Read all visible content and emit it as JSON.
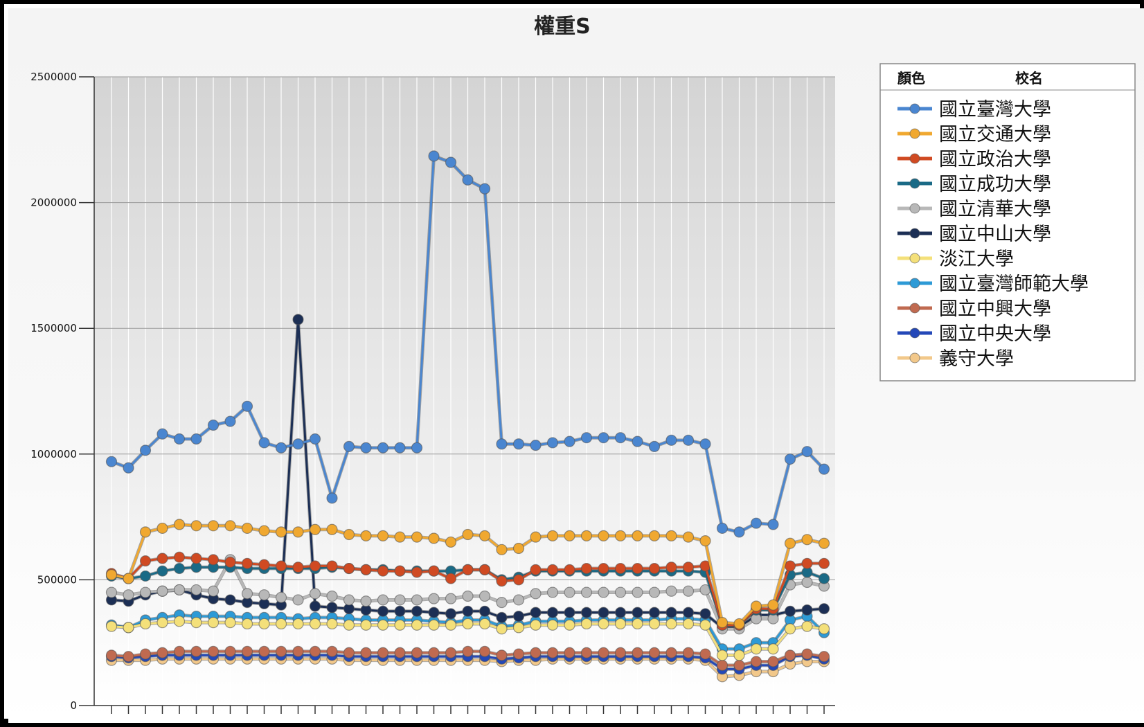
{
  "chart_data": {
    "type": "line",
    "title": "權重S",
    "xlabel": "",
    "ylabel": "",
    "ylim": [
      0,
      2500000
    ],
    "yticks": [
      0,
      500000,
      1000000,
      1500000,
      2000000,
      2500000
    ],
    "ytick_labels": [
      "0",
      "500000",
      "1000000",
      "1500000",
      "2000000",
      "2500000"
    ],
    "grid": true,
    "legend_placement": "top-right",
    "legend_headers": [
      "顏色",
      "校名"
    ],
    "series": [
      {
        "name": "國立臺灣大學",
        "color": "#4a86d0",
        "values": [
          970000,
          945000,
          1015000,
          1080000,
          1060000,
          1060000,
          1115000,
          1130000,
          1190000,
          1045000,
          1025000,
          1040000,
          1060000,
          825000,
          1030000,
          1025000,
          1025000,
          1025000,
          1025000,
          2185000,
          2160000,
          2090000,
          2055000,
          1040000,
          1040000,
          1035000,
          1045000,
          1050000,
          1065000,
          1065000,
          1065000,
          1050000,
          1030000,
          1055000,
          1055000,
          1040000,
          705000,
          690000,
          725000,
          720000,
          980000,
          1010000,
          940000
        ]
      },
      {
        "name": "國立交通大學",
        "color": "#f0a830",
        "values": [
          520000,
          505000,
          690000,
          705000,
          720000,
          715000,
          715000,
          715000,
          705000,
          695000,
          690000,
          690000,
          700000,
          700000,
          680000,
          675000,
          675000,
          670000,
          670000,
          665000,
          650000,
          680000,
          675000,
          620000,
          625000,
          670000,
          675000,
          675000,
          675000,
          675000,
          675000,
          675000,
          675000,
          675000,
          670000,
          655000,
          330000,
          325000,
          395000,
          400000,
          645000,
          660000,
          645000
        ]
      },
      {
        "name": "國立政治大學",
        "color": "#d04a22",
        "values": [
          525000,
          505000,
          575000,
          585000,
          590000,
          585000,
          580000,
          570000,
          565000,
          560000,
          555000,
          550000,
          555000,
          555000,
          545000,
          540000,
          535000,
          535000,
          530000,
          535000,
          505000,
          540000,
          540000,
          495000,
          500000,
          540000,
          540000,
          540000,
          545000,
          545000,
          545000,
          545000,
          545000,
          550000,
          550000,
          555000,
          320000,
          320000,
          385000,
          385000,
          555000,
          565000,
          565000
        ]
      },
      {
        "name": "國立成功大學",
        "color": "#1a6a86",
        "values": [
          515000,
          505000,
          515000,
          535000,
          545000,
          550000,
          550000,
          550000,
          545000,
          545000,
          545000,
          545000,
          545000,
          550000,
          545000,
          540000,
          540000,
          535000,
          535000,
          535000,
          535000,
          540000,
          540000,
          500000,
          510000,
          535000,
          535000,
          535000,
          535000,
          535000,
          535000,
          535000,
          535000,
          535000,
          535000,
          530000,
          320000,
          320000,
          380000,
          380000,
          520000,
          530000,
          505000
        ]
      },
      {
        "name": "國立清華大學",
        "color": "#b8b8b8",
        "values": [
          450000,
          440000,
          450000,
          455000,
          460000,
          460000,
          455000,
          580000,
          445000,
          440000,
          430000,
          420000,
          445000,
          435000,
          420000,
          415000,
          420000,
          420000,
          420000,
          425000,
          425000,
          435000,
          435000,
          410000,
          420000,
          445000,
          450000,
          450000,
          450000,
          450000,
          450000,
          450000,
          450000,
          455000,
          455000,
          460000,
          305000,
          305000,
          345000,
          345000,
          480000,
          490000,
          475000
        ]
      },
      {
        "name": "國立中山大學",
        "color": "#1c2f55",
        "values": [
          420000,
          415000,
          440000,
          455000,
          460000,
          440000,
          425000,
          420000,
          410000,
          405000,
          400000,
          1535000,
          395000,
          390000,
          385000,
          380000,
          375000,
          375000,
          375000,
          370000,
          365000,
          375000,
          375000,
          350000,
          355000,
          370000,
          370000,
          370000,
          370000,
          370000,
          370000,
          370000,
          370000,
          370000,
          370000,
          365000,
          310000,
          310000,
          360000,
          360000,
          375000,
          380000,
          385000
        ]
      },
      {
        "name": "淡江大學",
        "color": "#f4e07a",
        "values": [
          315000,
          310000,
          325000,
          330000,
          335000,
          330000,
          330000,
          330000,
          325000,
          325000,
          325000,
          325000,
          325000,
          325000,
          320000,
          320000,
          320000,
          320000,
          320000,
          320000,
          320000,
          325000,
          325000,
          305000,
          310000,
          320000,
          320000,
          320000,
          325000,
          325000,
          325000,
          325000,
          325000,
          325000,
          325000,
          320000,
          200000,
          200000,
          225000,
          225000,
          305000,
          315000,
          305000
        ]
      },
      {
        "name": "國立臺灣師範大學",
        "color": "#2d9ad6",
        "values": [
          320000,
          310000,
          340000,
          350000,
          360000,
          355000,
          355000,
          355000,
          350000,
          350000,
          350000,
          345000,
          350000,
          350000,
          345000,
          340000,
          340000,
          340000,
          340000,
          335000,
          330000,
          340000,
          340000,
          315000,
          320000,
          335000,
          335000,
          335000,
          340000,
          340000,
          340000,
          340000,
          340000,
          345000,
          345000,
          340000,
          225000,
          225000,
          250000,
          250000,
          340000,
          355000,
          290000
        ]
      },
      {
        "name": "國立中興大學",
        "color": "#c06a50",
        "values": [
          200000,
          195000,
          205000,
          210000,
          215000,
          215000,
          215000,
          215000,
          215000,
          215000,
          215000,
          215000,
          215000,
          215000,
          210000,
          210000,
          210000,
          210000,
          210000,
          210000,
          210000,
          215000,
          215000,
          200000,
          205000,
          210000,
          210000,
          210000,
          210000,
          210000,
          210000,
          210000,
          210000,
          210000,
          210000,
          205000,
          160000,
          160000,
          175000,
          175000,
          200000,
          205000,
          195000
        ]
      },
      {
        "name": "國立中央大學",
        "color": "#2448b8",
        "values": [
          195000,
          190000,
          195000,
          200000,
          200000,
          200000,
          200000,
          200000,
          200000,
          200000,
          200000,
          200000,
          200000,
          200000,
          195000,
          195000,
          195000,
          195000,
          195000,
          195000,
          195000,
          195000,
          195000,
          185000,
          190000,
          195000,
          195000,
          195000,
          195000,
          195000,
          195000,
          195000,
          195000,
          195000,
          195000,
          190000,
          145000,
          145000,
          160000,
          160000,
          195000,
          200000,
          185000
        ]
      },
      {
        "name": "義守大學",
        "color": "#f2c88a",
        "values": [
          180000,
          180000,
          180000,
          185000,
          185000,
          185000,
          185000,
          185000,
          185000,
          185000,
          185000,
          185000,
          185000,
          185000,
          180000,
          180000,
          180000,
          180000,
          180000,
          180000,
          180000,
          180000,
          180000,
          175000,
          180000,
          180000,
          185000,
          185000,
          185000,
          185000,
          185000,
          185000,
          185000,
          185000,
          185000,
          180000,
          115000,
          120000,
          135000,
          135000,
          165000,
          175000,
          175000
        ]
      }
    ]
  }
}
